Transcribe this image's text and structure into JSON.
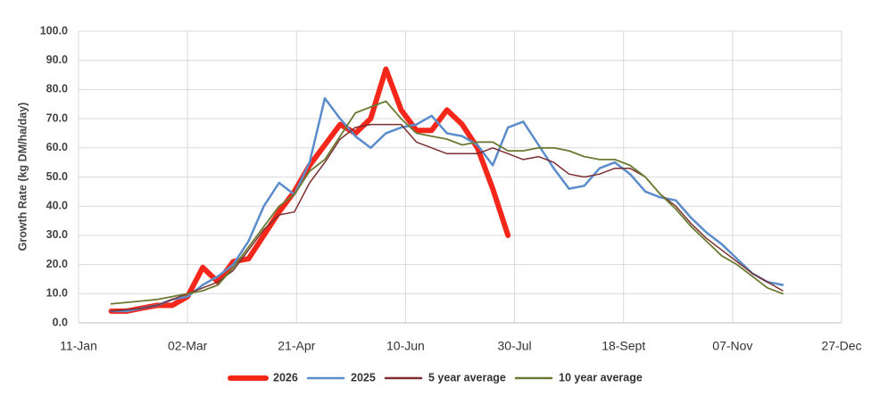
{
  "chart_data": {
    "type": "line",
    "y_label": "Growth Rate (kg DM/ha/day)",
    "x": [
      26,
      33,
      40,
      47,
      54,
      61,
      68,
      75,
      82,
      89,
      96,
      103,
      110,
      117,
      124,
      131,
      138,
      145,
      152,
      159,
      166,
      173,
      180,
      187,
      194,
      201,
      208,
      215,
      222,
      229,
      236,
      243,
      250,
      257,
      264,
      271,
      278,
      285,
      292,
      299,
      306,
      313,
      320,
      327,
      334
    ],
    "xlim": [
      11,
      361
    ],
    "xticks": [
      {
        "value": 11,
        "label": "11-Jan"
      },
      {
        "value": 61,
        "label": "02-Mar"
      },
      {
        "value": 111,
        "label": "21-Apr"
      },
      {
        "value": 161,
        "label": "10-Jun"
      },
      {
        "value": 211,
        "label": "30-Jul"
      },
      {
        "value": 261,
        "label": "18-Sept"
      },
      {
        "value": 311,
        "label": "07-Nov"
      },
      {
        "value": 361,
        "label": "27-Dec"
      }
    ],
    "ylim": [
      0,
      100
    ],
    "yticks": [
      {
        "value": 0,
        "label": "0.0"
      },
      {
        "value": 10,
        "label": "10.0"
      },
      {
        "value": 20,
        "label": "20.0"
      },
      {
        "value": 30,
        "label": "30.0"
      },
      {
        "value": 40,
        "label": "40.0"
      },
      {
        "value": 50,
        "label": "50.0"
      },
      {
        "value": 60,
        "label": "60.0"
      },
      {
        "value": 70,
        "label": "70.0"
      },
      {
        "value": 80,
        "label": "80.0"
      },
      {
        "value": 90,
        "label": "90.0"
      },
      {
        "value": 100,
        "label": "100.0"
      }
    ],
    "grid": true,
    "legend": "bottom",
    "series": [
      {
        "name": "2026",
        "color": "#f4271a",
        "width": 6,
        "values": [
          4,
          4,
          5,
          6,
          6,
          9,
          19,
          14,
          21,
          22,
          30,
          38,
          45,
          54,
          61,
          68,
          65,
          70,
          87,
          73,
          66,
          66,
          73,
          68,
          60,
          46,
          30,
          null,
          null,
          null,
          null,
          null,
          null,
          null,
          null,
          null,
          null,
          null,
          null,
          null,
          null,
          null,
          null,
          null,
          null
        ]
      },
      {
        "name": "2025",
        "color": "#5b8ccc",
        "width": 2.5,
        "values": [
          4,
          4,
          5,
          6,
          8,
          9,
          13,
          16,
          20,
          28,
          40,
          48,
          44,
          55,
          77,
          70,
          64,
          60,
          65,
          67,
          68,
          71,
          65,
          64,
          61,
          54,
          67,
          69,
          61,
          53,
          46,
          47,
          53,
          55,
          51,
          45,
          43,
          42,
          36,
          31,
          27,
          22,
          17,
          14,
          13
        ]
      },
      {
        "name": "5 year average",
        "color": "#7b2f2f",
        "width": 1.5,
        "values": [
          4,
          4.5,
          5,
          6,
          8,
          10,
          12,
          14,
          18,
          25,
          32,
          37,
          38,
          48,
          55,
          63,
          67,
          68,
          68,
          68,
          62,
          60,
          58,
          58,
          58,
          60,
          58,
          56,
          57,
          55,
          51,
          50,
          51,
          53,
          53,
          50,
          44,
          40,
          34,
          29,
          25,
          21,
          17,
          14,
          11
        ]
      },
      {
        "name": "10 year average",
        "color": "#6b7a32",
        "width": 1.8,
        "values": [
          6.5,
          7,
          7.5,
          8,
          9,
          10,
          11,
          13,
          19,
          26,
          33,
          40,
          44,
          52,
          56,
          64,
          72,
          74,
          76,
          70,
          65,
          64,
          63,
          61,
          62,
          62,
          59,
          59,
          60,
          60,
          59,
          57,
          56,
          56,
          54,
          50,
          44,
          39,
          33,
          28,
          23,
          20,
          16,
          12,
          10
        ]
      }
    ]
  }
}
